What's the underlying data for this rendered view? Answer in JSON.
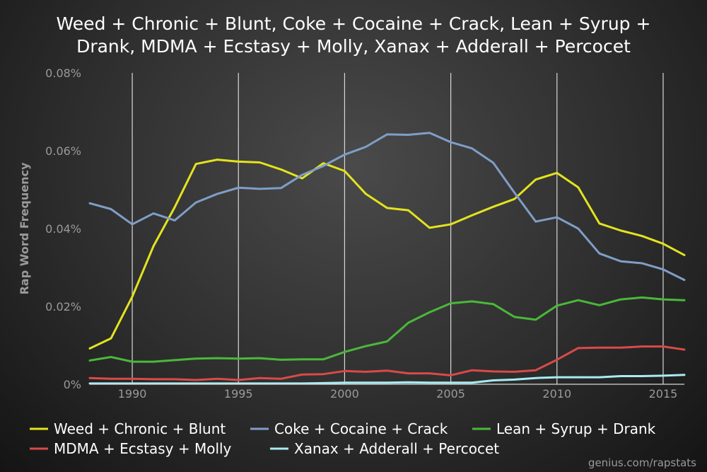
{
  "chart_data": {
    "type": "line",
    "title_lines": [
      "Weed + Chronic + Blunt, Coke + Cocaine + Crack, Lean + Syrup +",
      "Drank, MDMA + Ecstasy + Molly, Xanax + Adderall + Percocet"
    ],
    "xlabel": "",
    "ylabel": "Rap Word Frequency",
    "xlim": [
      1988,
      2016
    ],
    "ylim": [
      0,
      0.08
    ],
    "x_ticks": [
      1990,
      1995,
      2000,
      2005,
      2010,
      2015
    ],
    "y_ticks": [
      {
        "value": 0,
        "label": "0%"
      },
      {
        "value": 0.02,
        "label": "0.02%"
      },
      {
        "value": 0.04,
        "label": "0.04%"
      },
      {
        "value": 0.06,
        "label": "0.06%"
      },
      {
        "value": 0.08,
        "label": "0.08%"
      }
    ],
    "grid": "vertical",
    "legend_position": "bottom",
    "credit": "genius.com/rapstats",
    "x": [
      1988,
      1989,
      1990,
      1991,
      1992,
      1993,
      1994,
      1995,
      1996,
      1997,
      1998,
      1999,
      2000,
      2001,
      2002,
      2003,
      2004,
      2005,
      2006,
      2007,
      2008,
      2009,
      2010,
      2011,
      2012,
      2013,
      2014,
      2015,
      2016
    ],
    "series": [
      {
        "name": "Weed + Chronic + Blunt",
        "color": "#e3e31f",
        "values": [
          0.0092,
          0.0118,
          0.0225,
          0.0355,
          0.0455,
          0.0566,
          0.0577,
          0.0572,
          0.057,
          0.0552,
          0.0529,
          0.0568,
          0.0548,
          0.0489,
          0.0453,
          0.0447,
          0.0402,
          0.0411,
          0.0434,
          0.0456,
          0.0476,
          0.0526,
          0.0543,
          0.0506,
          0.0413,
          0.0395,
          0.0381,
          0.0361,
          0.0332
        ]
      },
      {
        "name": "Coke + Cocaine + Crack",
        "color": "#7f9ec7",
        "values": [
          0.0465,
          0.045,
          0.0411,
          0.0439,
          0.0421,
          0.0467,
          0.0489,
          0.0505,
          0.0502,
          0.0504,
          0.0538,
          0.0561,
          0.059,
          0.061,
          0.0642,
          0.0641,
          0.0646,
          0.0622,
          0.0606,
          0.0569,
          0.0492,
          0.0418,
          0.0429,
          0.04,
          0.0336,
          0.0316,
          0.0311,
          0.0295,
          0.0268
        ]
      },
      {
        "name": "Lean + Syrup + Drank",
        "color": "#4ab83a",
        "values": [
          0.0061,
          0.007,
          0.0058,
          0.0058,
          0.0062,
          0.0066,
          0.0067,
          0.0066,
          0.0067,
          0.0063,
          0.0064,
          0.0064,
          0.0083,
          0.0098,
          0.011,
          0.0158,
          0.0185,
          0.0208,
          0.0213,
          0.0206,
          0.0173,
          0.0166,
          0.0202,
          0.0216,
          0.0203,
          0.0218,
          0.0223,
          0.0218,
          0.0216
        ]
      },
      {
        "name": "MDMA + Ecstasy + Molly",
        "color": "#d94a4a",
        "values": [
          0.0016,
          0.0014,
          0.0014,
          0.0013,
          0.0013,
          0.0011,
          0.0014,
          0.0011,
          0.0016,
          0.0014,
          0.0025,
          0.0026,
          0.0034,
          0.0032,
          0.0035,
          0.0028,
          0.0028,
          0.0023,
          0.0036,
          0.0033,
          0.0032,
          0.0036,
          0.0063,
          0.0093,
          0.0094,
          0.0094,
          0.0097,
          0.0097,
          0.0089
        ]
      },
      {
        "name": "Xanax + Adderall + Percocet",
        "color": "#a8ecf2",
        "values": [
          0.0002,
          0.0002,
          0.0002,
          0.0002,
          0.0002,
          0.0002,
          0.0002,
          0.0002,
          0.0002,
          0.0002,
          0.0002,
          0.0003,
          0.0004,
          0.0004,
          0.0004,
          0.0005,
          0.0004,
          0.0004,
          0.0004,
          0.001,
          0.0012,
          0.0016,
          0.0018,
          0.0018,
          0.0018,
          0.0021,
          0.0021,
          0.0022,
          0.0024
        ]
      }
    ]
  }
}
